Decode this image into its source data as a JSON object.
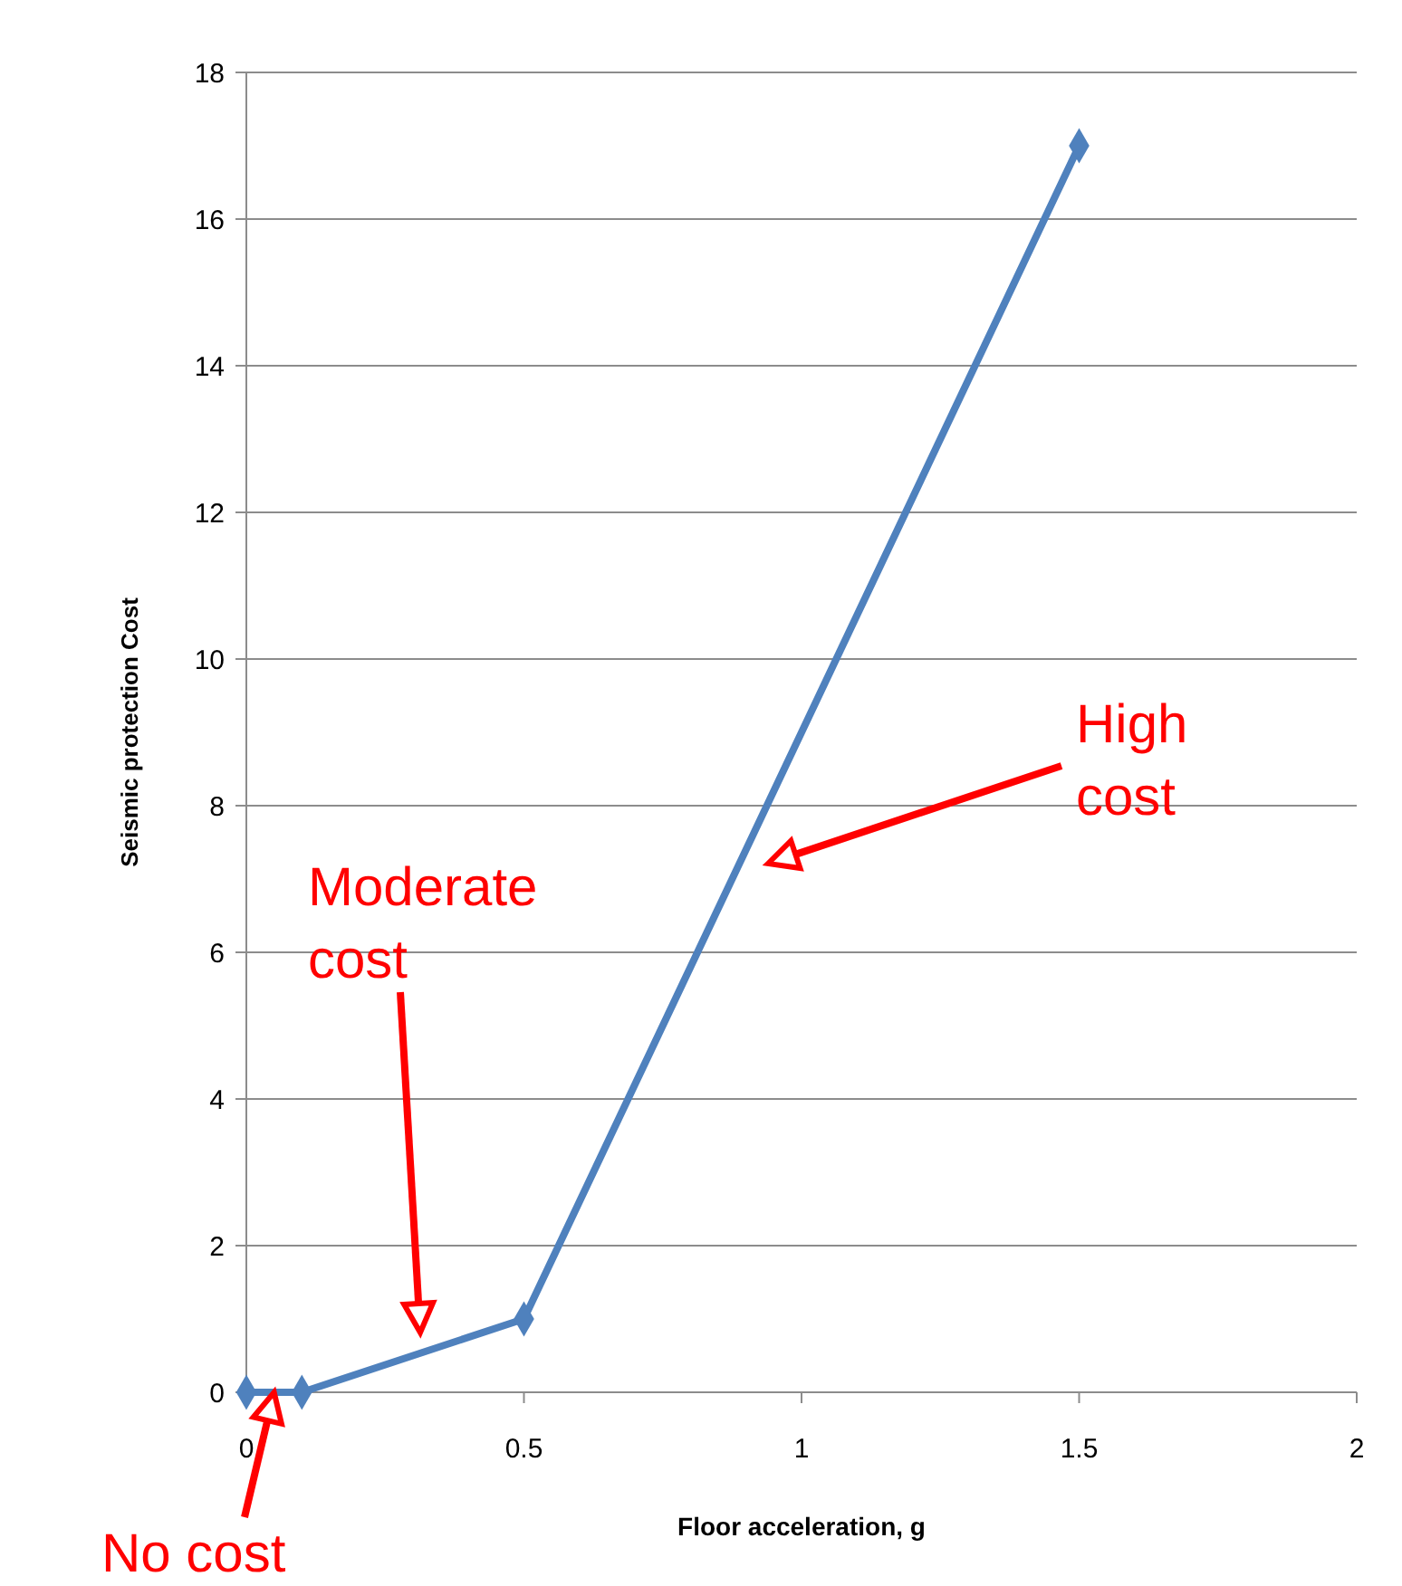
{
  "chart_data": {
    "type": "line",
    "xlabel": "Floor acceleration, g",
    "ylabel": "Seismic protection Cost",
    "x": [
      0,
      0.1,
      0.5,
      1.5
    ],
    "series": [
      {
        "color": "#4f81bd",
        "values": [
          0,
          0,
          1,
          17
        ]
      }
    ],
    "xlim": [
      0,
      2
    ],
    "xticks": [
      0,
      0.5,
      1,
      1.5,
      2
    ],
    "ylim": [
      0,
      18
    ],
    "yticks": [
      0,
      2,
      4,
      6,
      8,
      10,
      12,
      14,
      16,
      18
    ],
    "grid": "y",
    "marker": "diamond",
    "line_style": "solid",
    "annotations": [
      "Moderate cost",
      "High cost",
      {
        "text": "No cost",
        "x": 0.05,
        "y": 0
      }
    ]
  }
}
